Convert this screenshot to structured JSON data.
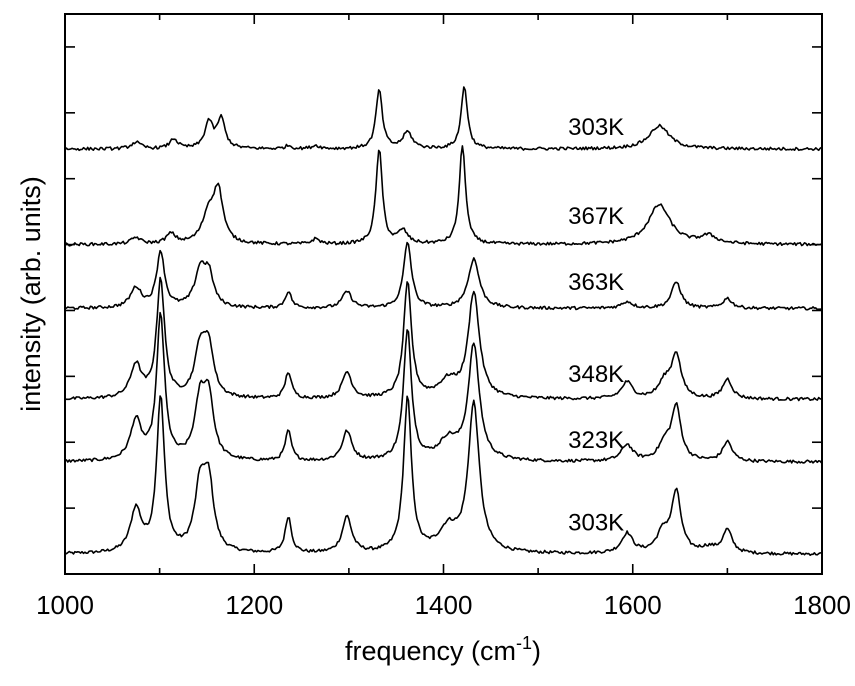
{
  "chart_data": {
    "type": "line",
    "xlabel": "frequency (cm",
    "xlabel_exponent": "-1",
    "xlabel_suffix": ")",
    "ylabel": "intensity (arb. units)",
    "xlim": [
      1000,
      1800
    ],
    "x_ticks": [
      1000,
      1200,
      1400,
      1600,
      1800
    ],
    "y_ticks": [
      0,
      1,
      2,
      3,
      4,
      5,
      6,
      7,
      8
    ],
    "ylim": [
      0,
      8.5
    ],
    "series": [
      {
        "name": "303K",
        "offset": 0.2,
        "base": 0.1,
        "label_x": 1500,
        "label_y": 0.8,
        "peaks": [
          [
            1075,
            0.65,
            7
          ],
          [
            1101,
            2.35,
            5
          ],
          [
            1143,
            1.0,
            7
          ],
          [
            1152,
            0.95,
            6
          ],
          [
            1236,
            0.55,
            4
          ],
          [
            1298,
            0.55,
            6
          ],
          [
            1362,
            2.35,
            5
          ],
          [
            1405,
            0.35,
            12
          ],
          [
            1432,
            2.25,
            7
          ],
          [
            1594,
            0.3,
            7
          ],
          [
            1632,
            0.3,
            8
          ],
          [
            1646,
            0.9,
            6
          ],
          [
            1680,
            0.08,
            10
          ],
          [
            1700,
            0.35,
            6
          ]
        ]
      },
      {
        "name": "323K",
        "offset": 1.6,
        "base": 0.1,
        "label_x": 1500,
        "label_y": 2.05,
        "peaks": [
          [
            1075,
            0.6,
            7
          ],
          [
            1101,
            2.2,
            5
          ],
          [
            1143,
            0.9,
            7
          ],
          [
            1152,
            0.85,
            6
          ],
          [
            1236,
            0.45,
            4
          ],
          [
            1298,
            0.45,
            6
          ],
          [
            1362,
            2.0,
            5
          ],
          [
            1405,
            0.3,
            12
          ],
          [
            1432,
            1.75,
            7
          ],
          [
            1594,
            0.25,
            7
          ],
          [
            1634,
            0.25,
            8
          ],
          [
            1646,
            0.8,
            6
          ],
          [
            1700,
            0.3,
            6
          ]
        ]
      },
      {
        "name": "348K",
        "offset": 2.55,
        "base": 0.1,
        "label_x": 1500,
        "label_y": 3.05,
        "peaks": [
          [
            1075,
            0.5,
            7
          ],
          [
            1101,
            1.8,
            5
          ],
          [
            1143,
            0.75,
            7
          ],
          [
            1152,
            0.7,
            6
          ],
          [
            1236,
            0.4,
            4
          ],
          [
            1298,
            0.4,
            6
          ],
          [
            1362,
            1.75,
            5
          ],
          [
            1405,
            0.25,
            12
          ],
          [
            1432,
            1.6,
            7
          ],
          [
            1594,
            0.25,
            7
          ],
          [
            1634,
            0.25,
            8
          ],
          [
            1646,
            0.65,
            6
          ],
          [
            1700,
            0.3,
            6
          ]
        ]
      },
      {
        "name": "363K",
        "offset": 3.95,
        "base": 0.08,
        "label_x": 1500,
        "label_y": 4.45,
        "peaks": [
          [
            1075,
            0.3,
            7
          ],
          [
            1101,
            0.85,
            5
          ],
          [
            1143,
            0.55,
            7
          ],
          [
            1152,
            0.45,
            6
          ],
          [
            1236,
            0.25,
            4
          ],
          [
            1298,
            0.25,
            6
          ],
          [
            1362,
            1.0,
            5
          ],
          [
            1432,
            0.75,
            7
          ],
          [
            1594,
            0.1,
            7
          ],
          [
            1646,
            0.4,
            6
          ],
          [
            1700,
            0.15,
            6
          ]
        ]
      },
      {
        "name": "367K",
        "offset": 4.95,
        "base": 0.05,
        "label_x": 1500,
        "label_y": 5.45,
        "peaks": [
          [
            1075,
            0.1,
            6
          ],
          [
            1112,
            0.15,
            6
          ],
          [
            1152,
            0.45,
            8
          ],
          [
            1162,
            0.75,
            6
          ],
          [
            1265,
            0.08,
            5
          ],
          [
            1332,
            1.45,
            4
          ],
          [
            1357,
            0.2,
            6
          ],
          [
            1420,
            1.5,
            4
          ],
          [
            1628,
            0.6,
            14
          ],
          [
            1680,
            0.12,
            10
          ]
        ]
      },
      {
        "name": "303K",
        "offset": 6.4,
        "base": 0.05,
        "label_x": 1500,
        "label_y": 6.8,
        "peaks": [
          [
            1075,
            0.1,
            6
          ],
          [
            1115,
            0.15,
            5
          ],
          [
            1152,
            0.4,
            5
          ],
          [
            1165,
            0.45,
            5
          ],
          [
            1236,
            0.05,
            4
          ],
          [
            1265,
            0.05,
            5
          ],
          [
            1332,
            0.9,
            4
          ],
          [
            1362,
            0.25,
            6
          ],
          [
            1422,
            0.95,
            4
          ],
          [
            1628,
            0.35,
            13
          ]
        ]
      }
    ]
  }
}
